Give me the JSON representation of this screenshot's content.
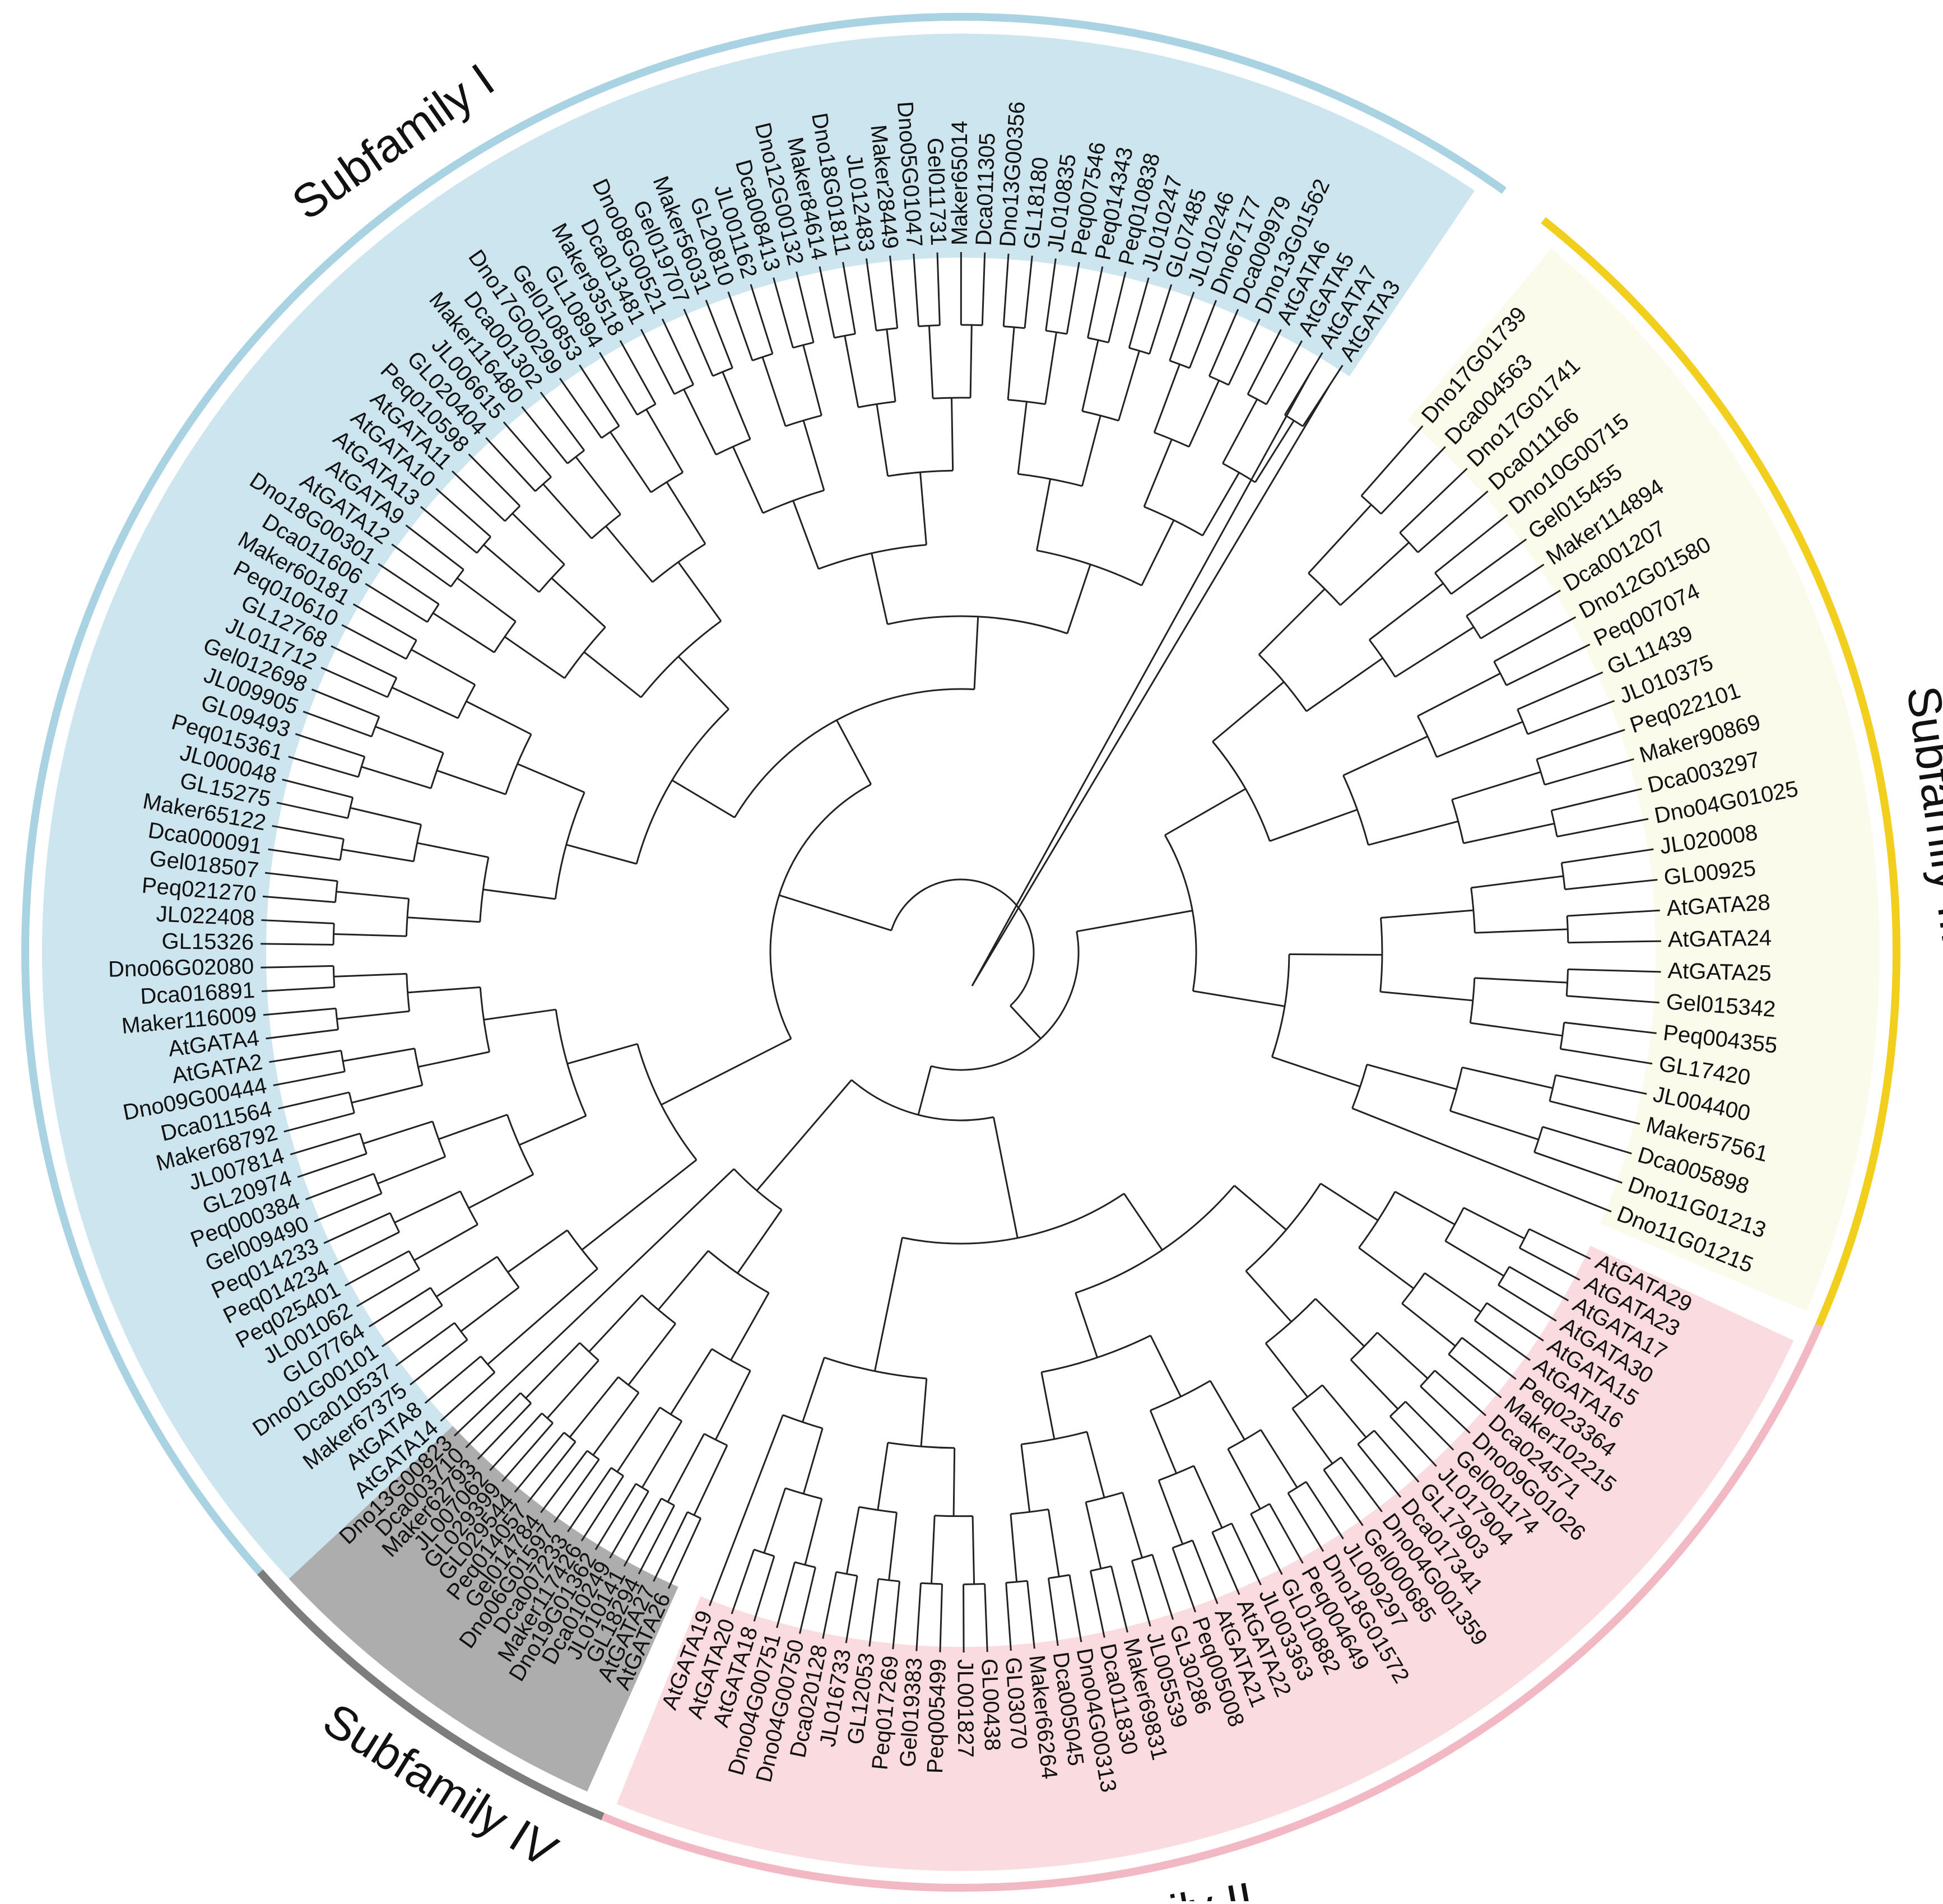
{
  "figure": {
    "type": "circular-phylogenetic-tree",
    "subfamilies": [
      {
        "key": "I",
        "label": "Subfamily I",
        "shade": "#cde5ee",
        "arc": "#a9d3e2"
      },
      {
        "key": "III",
        "label": "Subfamily III",
        "shade": "#fbfbec",
        "arc": "#f2cf1c"
      },
      {
        "key": "II",
        "label": "Subfamily II",
        "shade": "#f9dbe0",
        "arc": "#f2b9c4"
      },
      {
        "key": "IV",
        "label": "Subfamily IV",
        "shade": "#adadad",
        "arc": "#7d7d7d"
      }
    ],
    "leaves": {
      "I": [
        "AtGATA3",
        "AtGATA7",
        "AtGATA5",
        "AtGATA6",
        "Dno13G01562",
        "Dca009979",
        "Dno67177",
        "JL010246",
        "GL07485",
        "JL010247",
        "Peq010838",
        "Peq014343",
        "Peq007546",
        "JL010835",
        "GL18180",
        "Dno13G00356",
        "Dca011305",
        "Maker65014",
        "Gel011731",
        "Dno05G01047",
        "Maker28449",
        "JL012483",
        "Dno18G01811",
        "Maker84614",
        "Dno12G00132",
        "Dca008413",
        "JL001162",
        "GL20810",
        "Maker56031",
        "Gel019707",
        "Dno08G00521",
        "Dca013481",
        "Maker93518",
        "GL10894",
        "Gel010853",
        "Dno17G00299",
        "Dca001302",
        "Maker116480",
        "JL006615",
        "GL020404",
        "Peq010598",
        "AtGATA11",
        "AtGATA10",
        "AtGATA13",
        "AtGATA9",
        "AtGATA12",
        "Dno18G00301",
        "Dca011606",
        "Maker60181",
        "Peq010610",
        "GL12768",
        "JL011712",
        "Gel012698",
        "JL009905",
        "GL09493",
        "Peq015361",
        "JL000048",
        "GL15275",
        "Maker65122",
        "Dca000091",
        "Gel018507",
        "Peq021270",
        "JL022408",
        "GL15326",
        "Dno06G02080",
        "Dca016891",
        "Maker116009",
        "AtGATA4",
        "AtGATA2",
        "Dno09G00444",
        "Dca011564",
        "Maker68792",
        "JL007814",
        "GL20974",
        "Peq000384",
        "Gel009490",
        "Peq014233",
        "Peq014234",
        "Peq025401",
        "JL001062",
        "GL07764",
        "Dno01G00101",
        "Dca010537",
        "Maker67375",
        "AtGATA8",
        "AtGATA14"
      ],
      "III": [
        "Dno17G01739",
        "Dca004563",
        "Dno17G01741",
        "Dca011166",
        "Dno10G00715",
        "Gel015455",
        "Maker114894",
        "Dca001207",
        "Dno12G01580",
        "Peq007074",
        "GL11439",
        "JL010375",
        "Peq022101",
        "Maker90869",
        "Dca003297",
        "Dno04G01025",
        "JL020008",
        "GL00925",
        "AtGATA28",
        "AtGATA24",
        "AtGATA25",
        "Gel015342",
        "Peq004355",
        "GL17420",
        "JL004400",
        "Maker57561",
        "Dca005898",
        "Dno11G01213",
        "Dno11G01215"
      ],
      "II": [
        "AtGATA29",
        "AtGATA23",
        "AtGATA17",
        "AtGATA30",
        "AtGATA15",
        "AtGATA16",
        "Peq023364",
        "Maker102215",
        "Dca024571",
        "Dno09G01026",
        "Gel001174",
        "JL017904",
        "GL17903",
        "Dca017341",
        "Dno04G001359",
        "Gel000685",
        "JL009297",
        "Dno18G01572",
        "Peq004649",
        "GL010882",
        "JL003363",
        "AtGATA22",
        "AtGATA21",
        "Peq005008",
        "GL30286",
        "JL005539",
        "Maker69831",
        "Dca011830",
        "Dno04G00313",
        "Dca005045",
        "Maker66264",
        "GL03070",
        "GL00438",
        "JL001827",
        "Peq005499",
        "Gel019383",
        "Peq017269",
        "GL12053",
        "JL016733",
        "Dca020128",
        "Dno04G00750",
        "Dno04G00751",
        "AtGATA18",
        "AtGATA20",
        "AtGATA19"
      ],
      "IV": [
        "AtGATA26",
        "AtGATA27",
        "GL18294",
        "JL010141",
        "Dca010249",
        "Dno19G01362",
        "Maker117426",
        "Dca007233",
        "Dno06G01597",
        "Gel014784",
        "Peq014057",
        "GL029544",
        "GL029399",
        "JL007062",
        "Maker62793",
        "Dca003710",
        "Dno13G00823"
      ]
    }
  }
}
